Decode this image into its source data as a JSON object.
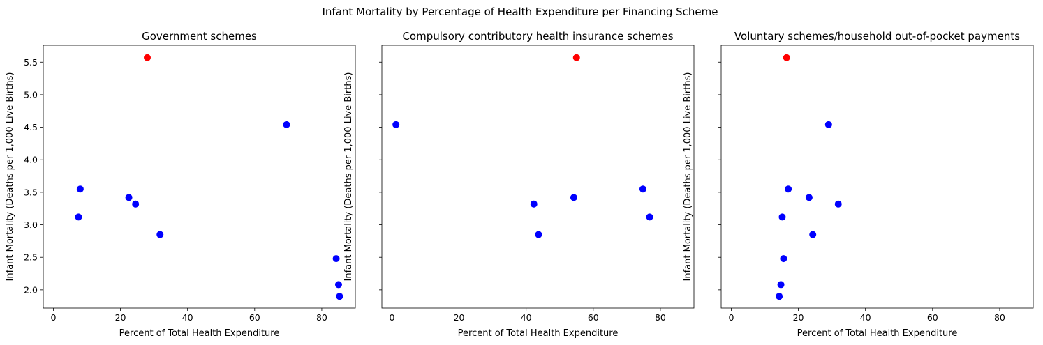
{
  "title": "Infant Mortality by Percentage of Health Expenditure per Financing Scheme",
  "colors": {
    "normal": "#0000ff",
    "highlight": "#ff0000"
  },
  "chart_data": [
    {
      "type": "scatter",
      "title": "Government schemes",
      "xlabel": "Percent of Total Health Expenditure",
      "ylabel": "Infant Mortality (Deaths per 1,000 Live Births)",
      "xlim": [
        -3,
        90
      ],
      "ylim": [
        1.72,
        5.76
      ],
      "xticks": [
        "0",
        "20",
        "40",
        "60",
        "80"
      ],
      "yticks": [
        "2.0",
        "2.5",
        "3.0",
        "3.5",
        "4.0",
        "4.5",
        "5.0",
        "5.5"
      ],
      "show_yticklabels": true,
      "points": [
        {
          "x": 28.0,
          "y": 5.57,
          "highlight": true
        },
        {
          "x": 69.5,
          "y": 4.54,
          "highlight": false
        },
        {
          "x": 8.0,
          "y": 3.55,
          "highlight": false
        },
        {
          "x": 22.5,
          "y": 3.42,
          "highlight": false
        },
        {
          "x": 24.5,
          "y": 3.32,
          "highlight": false
        },
        {
          "x": 7.5,
          "y": 3.12,
          "highlight": false
        },
        {
          "x": 31.8,
          "y": 2.85,
          "highlight": false
        },
        {
          "x": 84.3,
          "y": 2.48,
          "highlight": false
        },
        {
          "x": 85.0,
          "y": 2.08,
          "highlight": false
        },
        {
          "x": 85.3,
          "y": 1.9,
          "highlight": false
        }
      ]
    },
    {
      "type": "scatter",
      "title": "Compulsory contributory health insurance schemes",
      "xlabel": "Percent of Total Health Expenditure",
      "ylabel": "Infant Mortality (Deaths per 1,000 Live Births)",
      "xlim": [
        -3,
        90
      ],
      "ylim": [
        1.72,
        5.76
      ],
      "xticks": [
        "0",
        "20",
        "40",
        "60",
        "80"
      ],
      "yticks": [
        "2.0",
        "2.5",
        "3.0",
        "3.5",
        "4.0",
        "4.5",
        "5.0",
        "5.5"
      ],
      "show_yticklabels": false,
      "points": [
        {
          "x": 55.0,
          "y": 5.57,
          "highlight": true
        },
        {
          "x": 1.2,
          "y": 4.54,
          "highlight": false
        },
        {
          "x": 74.8,
          "y": 3.55,
          "highlight": false
        },
        {
          "x": 54.2,
          "y": 3.42,
          "highlight": false
        },
        {
          "x": 42.3,
          "y": 3.32,
          "highlight": false
        },
        {
          "x": 76.8,
          "y": 3.12,
          "highlight": false
        },
        {
          "x": 43.7,
          "y": 2.85,
          "highlight": false
        }
      ]
    },
    {
      "type": "scatter",
      "title": "Voluntary schemes/household out-of-pocket payments",
      "xlabel": "Percent of Total Health Expenditure",
      "ylabel": "Infant Mortality (Deaths per 1,000 Live Births)",
      "xlim": [
        -3,
        90
      ],
      "ylim": [
        1.72,
        5.76
      ],
      "xticks": [
        "0",
        "20",
        "40",
        "60",
        "80"
      ],
      "yticks": [
        "2.0",
        "2.5",
        "3.0",
        "3.5",
        "4.0",
        "4.5",
        "5.0",
        "5.5"
      ],
      "show_yticklabels": false,
      "points": [
        {
          "x": 16.5,
          "y": 5.57,
          "highlight": true
        },
        {
          "x": 29.0,
          "y": 4.54,
          "highlight": false
        },
        {
          "x": 17.0,
          "y": 3.55,
          "highlight": false
        },
        {
          "x": 23.2,
          "y": 3.42,
          "highlight": false
        },
        {
          "x": 31.9,
          "y": 3.32,
          "highlight": false
        },
        {
          "x": 15.2,
          "y": 3.12,
          "highlight": false
        },
        {
          "x": 24.3,
          "y": 2.85,
          "highlight": false
        },
        {
          "x": 15.6,
          "y": 2.48,
          "highlight": false
        },
        {
          "x": 14.8,
          "y": 2.08,
          "highlight": false
        },
        {
          "x": 14.3,
          "y": 1.9,
          "highlight": false
        }
      ]
    }
  ]
}
